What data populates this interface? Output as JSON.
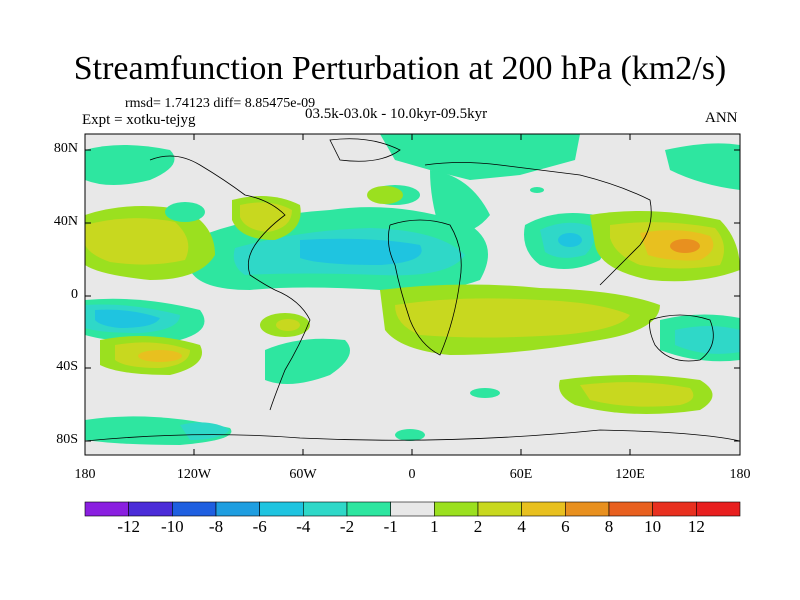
{
  "title": "Streamfunction Perturbation at 200 hPa (km2/s)",
  "stats": "rmsd= 1.74123  diff= 8.85475e-09",
  "experiment": "Expt = xotku-tejyg",
  "period": "03.5k-03.0k - 10.0kyr-09.5kyr",
  "season": "ANN",
  "y_axis": [
    "80N",
    "40N",
    "0",
    "40S",
    "80S"
  ],
  "x_axis": [
    "180",
    "120W",
    "60W",
    "0",
    "60E",
    "120E",
    "180"
  ],
  "legend": {
    "labels": [
      "-12",
      "-10",
      "-8",
      "-6",
      "-4",
      "-2",
      "-1",
      "1",
      "2",
      "4",
      "6",
      "8",
      "10",
      "12"
    ],
    "colors": [
      "#8a1fe0",
      "#4b2cd8",
      "#1f5fe0",
      "#1f9ee0",
      "#1fc4e0",
      "#2fd8c8",
      "#2ee6a0",
      "#e8e8e8",
      "#9be01f",
      "#c8d81f",
      "#e8c01f",
      "#e8901f",
      "#e8601f",
      "#e8301f",
      "#e81f1f"
    ]
  },
  "colors": {
    "background": "#e8e8e8",
    "coast": "#000000"
  }
}
